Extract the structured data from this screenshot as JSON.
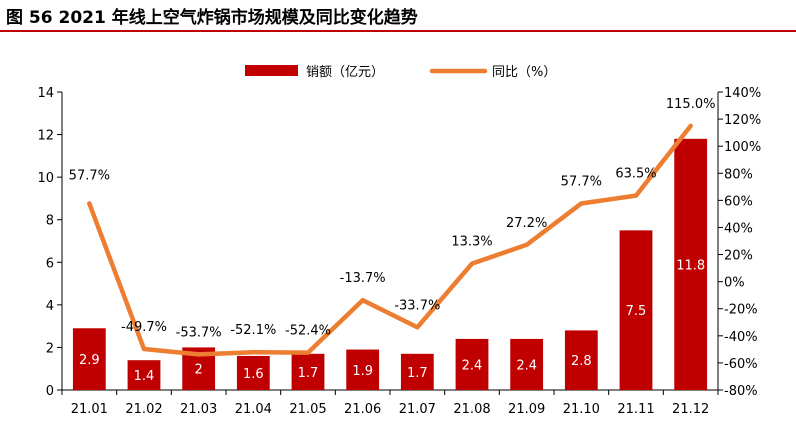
{
  "title": "图 56 2021 年线上空气炸锅市场规模及同比变化趋势",
  "chart_data": {
    "type": "bar",
    "categories": [
      "21.01",
      "21.02",
      "21.03",
      "21.04",
      "21.05",
      "21.06",
      "21.07",
      "21.08",
      "21.09",
      "21.10",
      "21.11",
      "21.12"
    ],
    "series": [
      {
        "name": "销额（亿元）",
        "type": "bar",
        "axis": "left",
        "color": "#c00000",
        "values": [
          2.9,
          1.4,
          2,
          1.6,
          1.7,
          1.9,
          1.7,
          2.4,
          2.4,
          2.8,
          7.5,
          11.8
        ],
        "labels": [
          "2.9",
          "1.4",
          "2",
          "1.6",
          "1.7",
          "1.9",
          "1.7",
          "2.4",
          "2.4",
          "2.8",
          "7.5",
          "11.8"
        ]
      },
      {
        "name": "同比（%）",
        "type": "line",
        "axis": "right",
        "color": "#ed7d31",
        "values": [
          57.7,
          -49.7,
          -53.7,
          -52.1,
          -52.4,
          -13.7,
          -33.7,
          13.3,
          27.2,
          57.7,
          63.5,
          115.0
        ],
        "labels": [
          "57.7%",
          "-49.7%",
          "-53.7%",
          "-52.1%",
          "-52.4%",
          "-13.7%",
          "-33.7%",
          "13.3%",
          "27.2%",
          "57.7%",
          "63.5%",
          "115.0%"
        ]
      }
    ],
    "y_left": {
      "min": 0,
      "max": 14,
      "ticks": [
        0,
        2,
        4,
        6,
        8,
        10,
        12,
        14
      ],
      "tick_labels": [
        "0",
        "2",
        "4",
        "6",
        "8",
        "10",
        "12",
        "14"
      ]
    },
    "y_right": {
      "min": -80,
      "max": 140,
      "ticks": [
        -80,
        -60,
        -40,
        -20,
        0,
        20,
        40,
        60,
        80,
        100,
        120,
        140
      ],
      "tick_labels": [
        "-80%",
        "-60%",
        "-40%",
        "-20%",
        "0%",
        "20%",
        "40%",
        "60%",
        "80%",
        "100%",
        "120%",
        "140%"
      ]
    },
    "legend": [
      "销额（亿元）",
      "同比（%）"
    ],
    "legend_position": "top",
    "grid": false
  }
}
